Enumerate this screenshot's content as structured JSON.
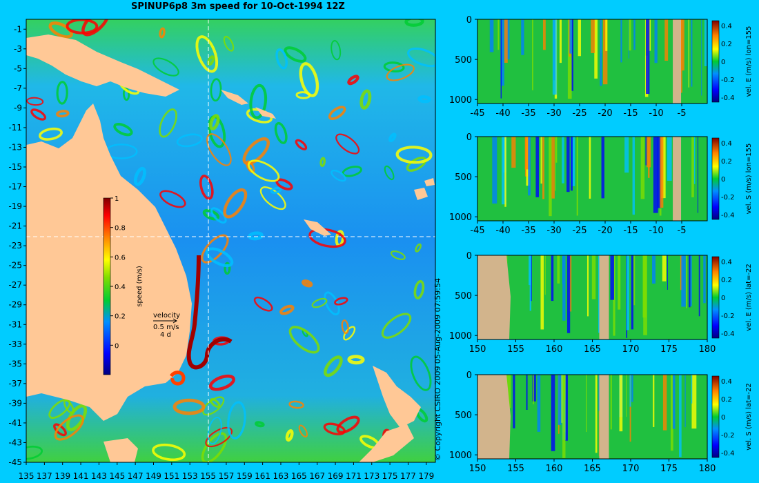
{
  "title": "SPINUP6p8 3m speed for 10-Oct-1994 12Z",
  "copyright": "© Copyright CSIRO 2009   05-Aug-2009 07:59:54",
  "colors": {
    "background": "#00ccff",
    "land": "#ffc896",
    "section_land": "#d2b48c",
    "colormap": [
      "#00007f",
      "#0000ff",
      "#0080ff",
      "#00c0ff",
      "#00cc33",
      "#80dd00",
      "#ffff00",
      "#ff8000",
      "#ff0000",
      "#7f0000"
    ]
  },
  "map": {
    "chart_data": {
      "type": "heatmap",
      "quantity": "speed",
      "x_ticks": [
        "135",
        "137",
        "139",
        "141",
        "143",
        "145",
        "147",
        "149",
        "151",
        "153",
        "155",
        "157",
        "159",
        "161",
        "163",
        "165",
        "167",
        "169",
        "171",
        "173",
        "175",
        "177",
        "179"
      ],
      "y_ticks": [
        "-1",
        "-3",
        "-5",
        "-7",
        "-9",
        "-11",
        "-13",
        "-15",
        "-17",
        "-19",
        "-21",
        "-23",
        "-25",
        "-27",
        "-29",
        "-31",
        "-33",
        "-35",
        "-37",
        "-39",
        "-41",
        "-43",
        "-45"
      ],
      "xlim": [
        135,
        180
      ],
      "ylim": [
        -45,
        0
      ],
      "section_lines": {
        "lon": 155,
        "lat": -22
      }
    },
    "colorbar": {
      "label": "speed (m/s)",
      "ticks": [
        "1",
        "0.8",
        "0.6",
        "0.4",
        "0.2",
        "0"
      ],
      "range": [
        -0.2,
        1.0
      ]
    },
    "velocity_key": {
      "label": "velocity",
      "speed": "0.5 m/s",
      "days": "4 d"
    }
  },
  "sections": [
    {
      "chart_data": {
        "type": "heatmap",
        "ylabel": "vel. E (m/s) lon=155",
        "x_ticks": [
          "-45",
          "-40",
          "-35",
          "-30",
          "-25",
          "-20",
          "-15",
          "-10",
          "-5"
        ],
        "xlim": [
          -45,
          0
        ],
        "y_ticks": [
          "0",
          "500",
          "1000"
        ],
        "ylim": [
          1050,
          0
        ],
        "colorbar_ticks": [
          "0.4",
          "0.2",
          "0",
          "-0.2",
          "-0.4"
        ]
      }
    },
    {
      "chart_data": {
        "type": "heatmap",
        "ylabel": "vel. S (m/s) lon=155",
        "x_ticks": [
          "-45",
          "-40",
          "-35",
          "-30",
          "-25",
          "-20",
          "-15",
          "-10",
          "-5"
        ],
        "xlim": [
          -45,
          0
        ],
        "y_ticks": [
          "0",
          "500",
          "1000"
        ],
        "ylim": [
          1050,
          0
        ],
        "colorbar_ticks": [
          "0.4",
          "0.2",
          "0",
          "-0.2",
          "-0.4"
        ]
      }
    },
    {
      "chart_data": {
        "type": "heatmap",
        "ylabel": "vel. E (m/s) lat=-22",
        "x_ticks": [
          "150",
          "155",
          "160",
          "165",
          "170",
          "175",
          "180"
        ],
        "xlim": [
          150,
          180
        ],
        "y_ticks": [
          "0",
          "500",
          "1000"
        ],
        "ylim": [
          1050,
          0
        ],
        "colorbar_ticks": [
          "0.4",
          "0.2",
          "0",
          "-0.2",
          "-0.4"
        ]
      }
    },
    {
      "chart_data": {
        "type": "heatmap",
        "ylabel": "vel. S (m/s) lat=-22",
        "x_ticks": [
          "150",
          "155",
          "160",
          "165",
          "170",
          "175",
          "180"
        ],
        "xlim": [
          150,
          180
        ],
        "y_ticks": [
          "0",
          "500",
          "1000"
        ],
        "ylim": [
          1050,
          0
        ],
        "colorbar_ticks": [
          "0.4",
          "0.2",
          "0",
          "-0.2",
          "-0.4"
        ]
      }
    }
  ]
}
